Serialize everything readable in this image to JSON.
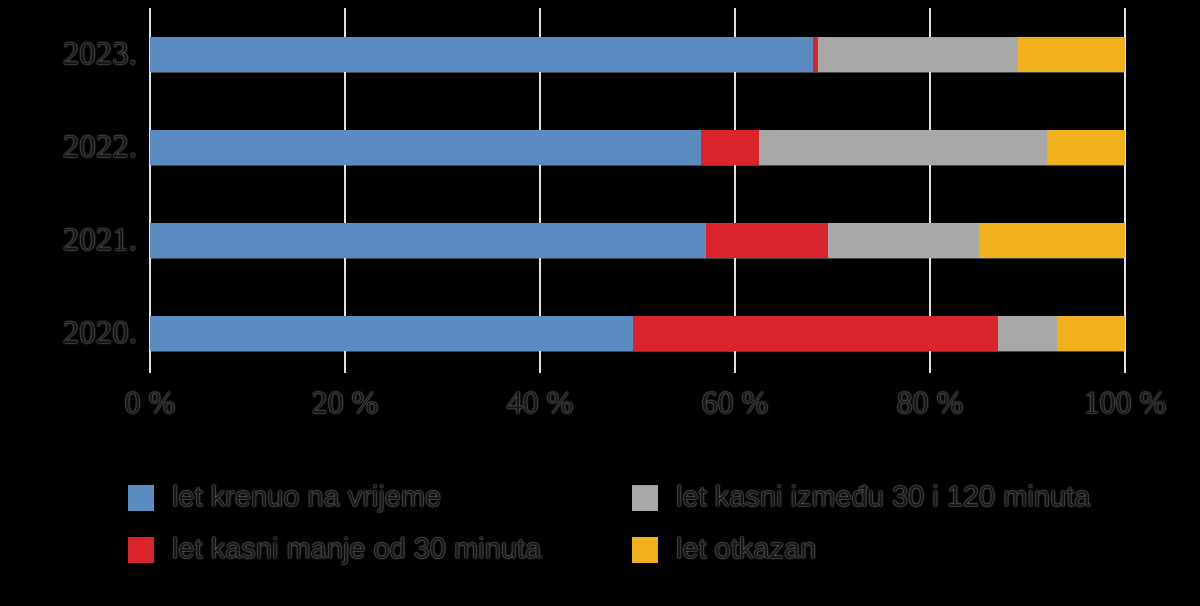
{
  "chart_data": {
    "type": "bar",
    "orientation": "horizontal",
    "stacked": true,
    "title": "",
    "xlabel": "",
    "ylabel": "",
    "xlim": [
      0,
      100
    ],
    "grid": true,
    "legend_position": "bottom",
    "categories": [
      "2023.",
      "2022.",
      "2021.",
      "2020."
    ],
    "series": [
      {
        "name": "let krenuo na vrijeme",
        "color": "#5b8cc1",
        "values": [
          68.0,
          56.5,
          57.0,
          49.5
        ]
      },
      {
        "name": "let kasni manje od 30 minuta",
        "color": "#d9242b",
        "values": [
          0.5,
          6.0,
          12.5,
          37.5
        ]
      },
      {
        "name": "let kasni između 30 i 120 minuta",
        "color": "#a8a8a8",
        "values": [
          20.5,
          29.5,
          15.5,
          6.0
        ]
      },
      {
        "name": "let otkazan",
        "color": "#f1b11d",
        "values": [
          11.0,
          8.0,
          15.0,
          7.0
        ]
      }
    ],
    "x_ticks": [
      "0 %",
      "20 %",
      "40 %",
      "60 %",
      "80 %",
      "100 %"
    ]
  },
  "colors": {
    "background": "#000000",
    "gridline": "#e2e2e2"
  }
}
